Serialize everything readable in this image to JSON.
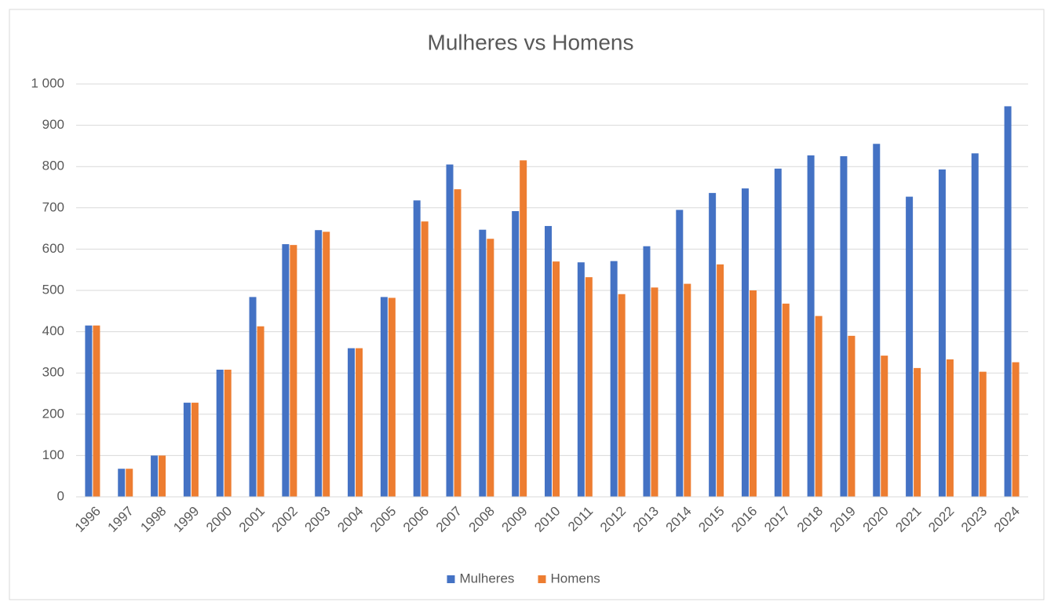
{
  "chart_data": {
    "type": "bar",
    "title": "Mulheres vs Homens",
    "categories": [
      "1996",
      "1997",
      "1998",
      "1999",
      "2000",
      "2001",
      "2002",
      "2003",
      "2004",
      "2005",
      "2006",
      "2007",
      "2008",
      "2009",
      "2010",
      "2011",
      "2012",
      "2013",
      "2014",
      "2015",
      "2016",
      "2017",
      "2018",
      "2019",
      "2020",
      "2021",
      "2022",
      "2023",
      "2024"
    ],
    "series": [
      {
        "name": "Mulheres",
        "color": "#4472c4",
        "values": [
          415,
          68,
          100,
          228,
          308,
          484,
          612,
          646,
          360,
          484,
          718,
          805,
          647,
          692,
          656,
          568,
          571,
          607,
          695,
          736,
          747,
          795,
          827,
          825,
          855,
          727,
          793,
          832,
          946
        ]
      },
      {
        "name": "Homens",
        "color": "#ed7d31",
        "values": [
          415,
          68,
          100,
          228,
          308,
          413,
          610,
          642,
          360,
          482,
          667,
          745,
          625,
          815,
          570,
          532,
          491,
          507,
          516,
          563,
          500,
          468,
          438,
          390,
          342,
          312,
          333,
          303,
          326
        ]
      }
    ],
    "ylim": [
      0,
      1000
    ],
    "yticks": [
      0,
      100,
      200,
      300,
      400,
      500,
      600,
      700,
      800,
      900,
      {
        "value": 1000,
        "label": "1 000"
      }
    ],
    "grid": true,
    "legend": "bottom"
  }
}
